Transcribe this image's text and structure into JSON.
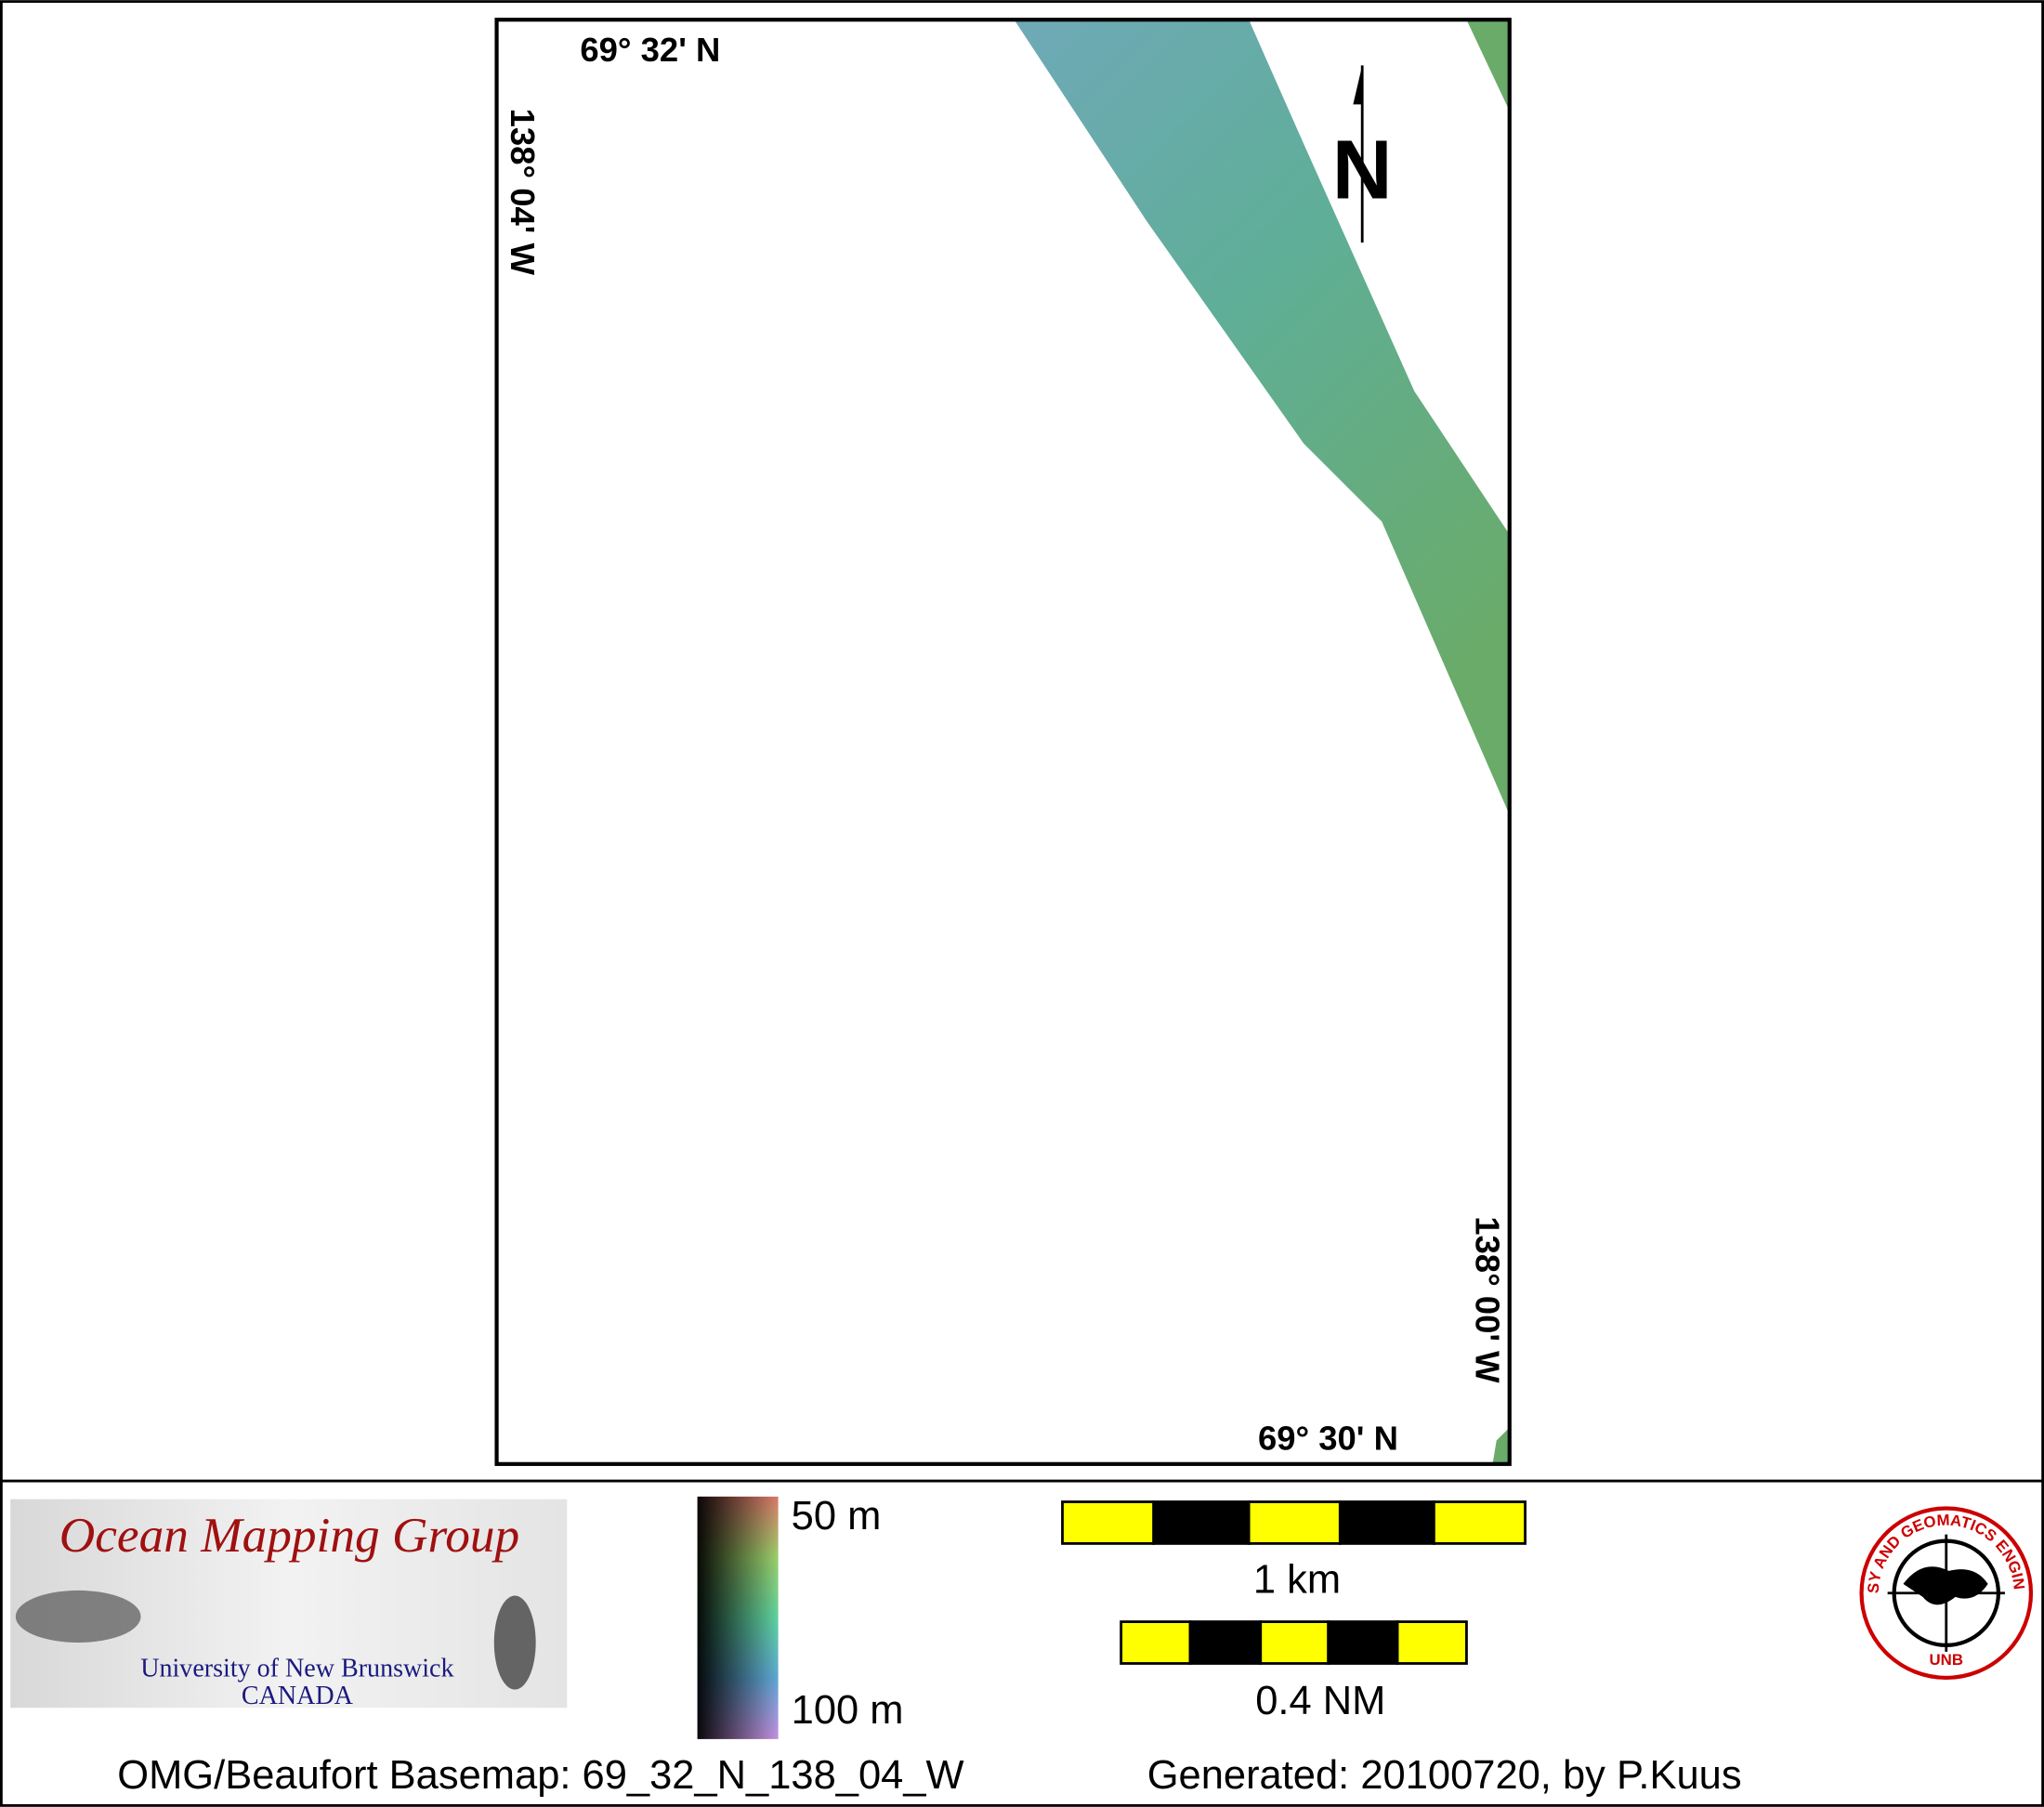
{
  "map": {
    "top_lat": "69° 32' N",
    "left_lon": "138° 04' W",
    "right_lon": "138° 00' W",
    "bottom_lat": "69° 30' N",
    "north_arrow": "N"
  },
  "legend": {
    "depth_top": "50 m",
    "depth_bottom": "100 m"
  },
  "scale_bars": [
    "1 km",
    "0.4 NM"
  ],
  "logos": {
    "omg_title": "Ocean Mapping Group",
    "omg_line1": "University of New Brunswick",
    "omg_line2": "CANADA",
    "unb_ring": "GEODESY AND GEOMATICS ENGINEERING",
    "unb_short": "UNB"
  },
  "footer": {
    "basemap": "OMG/Beaufort Basemap: 69_32_N_138_04_W",
    "generated": "Generated: 20100720, by P.Kuus"
  }
}
